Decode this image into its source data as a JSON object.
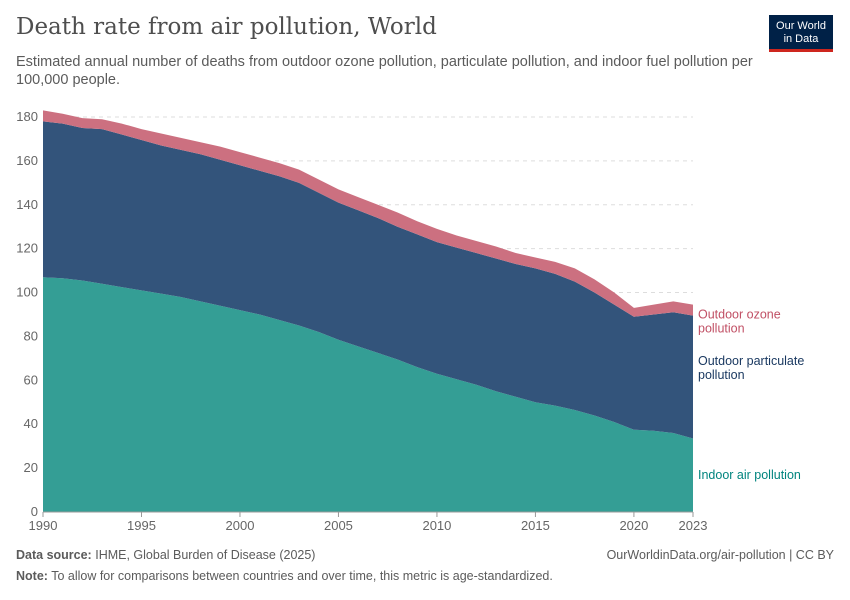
{
  "header": {
    "title": "Death rate from air pollution, World",
    "subtitle": "Estimated annual number of deaths from outdoor ozone pollution, particulate pollution, and indoor fuel pollution per 100,000 people.",
    "logo": "Our World in Data"
  },
  "footer": {
    "source_label": "Data source:",
    "source": "IHME, Global Burden of Disease (2025)",
    "url": "OurWorldinData.org/air-pollution | CC BY",
    "note_label": "Note:",
    "note": "To allow for comparisons between countries and over time, this metric is age-standardized."
  },
  "chart_data": {
    "type": "area",
    "stacked": true,
    "grid": true,
    "ylim": [
      0,
      180
    ],
    "xlim": [
      1990,
      2023
    ],
    "yticks": [
      0,
      20,
      40,
      60,
      80,
      100,
      120,
      140,
      160,
      180
    ],
    "xticks": [
      1990,
      1995,
      2000,
      2005,
      2010,
      2015,
      2020,
      2023
    ],
    "x": [
      1990,
      1991,
      1992,
      1993,
      1994,
      1995,
      1996,
      1997,
      1998,
      1999,
      2000,
      2001,
      2002,
      2003,
      2004,
      2005,
      2006,
      2007,
      2008,
      2009,
      2010,
      2011,
      2012,
      2013,
      2014,
      2015,
      2016,
      2017,
      2018,
      2019,
      2020,
      2021,
      2022,
      2023
    ],
    "series": [
      {
        "name": "Indoor air pollution",
        "color": "#349e95",
        "label_color": "#00847e",
        "values": [
          107,
          106.5,
          105.5,
          104,
          102.5,
          101,
          99.5,
          98,
          96,
          94,
          92,
          90,
          87.5,
          85,
          82,
          78.5,
          75.5,
          72.5,
          69.5,
          66,
          63,
          60.5,
          58,
          55,
          52.5,
          50,
          48.5,
          46.5,
          44,
          41,
          37.5,
          37,
          36,
          33.5
        ]
      },
      {
        "name": "Outdoor particulate pollution",
        "color": "#33547b",
        "label_color": "#18375f",
        "values": [
          71,
          70.5,
          69.5,
          70.5,
          69.5,
          68.5,
          67.5,
          67,
          67,
          66.5,
          66,
          65.5,
          65.5,
          65,
          63.5,
          62.5,
          62,
          61.5,
          60.5,
          60.5,
          60,
          60,
          60,
          60.5,
          60.5,
          61,
          60,
          58.5,
          56,
          53.5,
          51.5,
          53,
          55,
          56
        ]
      },
      {
        "name": "Outdoor ozone pollution",
        "color": "#cc7080",
        "label_color": "#c15065",
        "values": [
          5,
          4.5,
          4.5,
          4.5,
          5,
          5,
          5.5,
          5.5,
          5.5,
          6,
          6,
          6,
          6,
          6,
          6,
          6,
          6,
          6,
          6.5,
          6,
          6,
          5.5,
          5.5,
          5.5,
          5,
          5,
          5.5,
          6,
          6,
          5.5,
          4,
          4.5,
          5,
          5
        ]
      }
    ],
    "labels": [
      [
        "Outdoor ozone",
        "pollution"
      ],
      [
        "Outdoor particulate",
        "pollution"
      ],
      [
        "Indoor air pollution"
      ]
    ]
  }
}
